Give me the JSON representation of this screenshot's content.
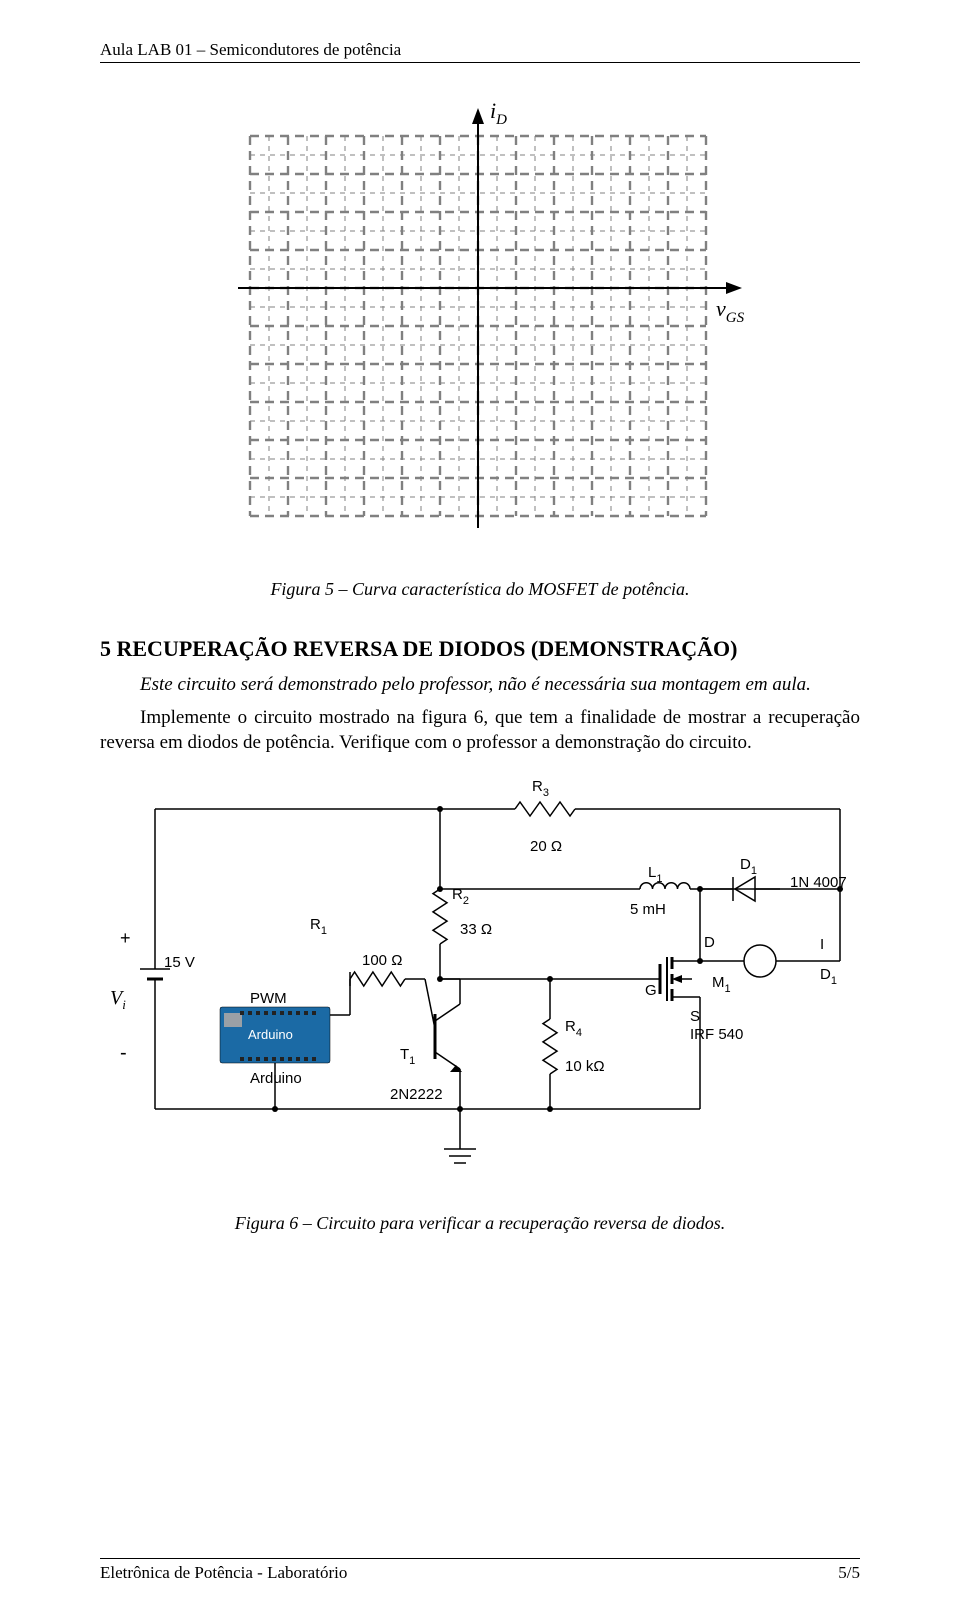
{
  "header": "Aula LAB 01 – Semicondutores de potência",
  "axes": {
    "y_label": "iD",
    "x_label": "vGS",
    "grid": {
      "cols": 12,
      "rows": 10,
      "cell": 38,
      "major_stroke": "#808080",
      "major_width": 2.4,
      "major_dash": "9 6",
      "minor_stroke": "#808080",
      "minor_width": 1,
      "minor_dash": "5 5",
      "axis_stroke": "#000000",
      "axis_width": 2
    }
  },
  "fig5_caption": "Figura 5 – Curva característica do MOSFET de potência.",
  "section5_title": "5   RECUPERAÇÃO REVERSA DE DIODOS (DEMONSTRAÇÃO)",
  "para1_a": "Este circuito será demonstrado pelo professor, não é necessária sua montagem em aula.",
  "para1_b": "Implemente o circuito mostrado na figura 6, que tem a finalidade de mostrar a recuperação reversa em diodos de potência. Verifique com o professor a demonstração do circuito.",
  "circuit": {
    "Vi_plus": "+",
    "Vi_minus": "-",
    "Vi": "Vi",
    "Vsrc": "15 V",
    "ard_box": "Arduino",
    "ard_label": "Arduino",
    "pwm": "PWM",
    "R1": "R1",
    "R1_val": "100 Ω",
    "R2": "R2",
    "R2_val": "33 Ω",
    "R3": "R3",
    "R3_val": "20 Ω",
    "R4": "R4",
    "R4_val": "10 kΩ",
    "T1": "T1",
    "T1_val": "2N2222",
    "L1": "L1",
    "L1_val": "5 mH",
    "D1": "D1",
    "D1_val": "1N 4007",
    "M1": "M1",
    "M1_val": "IRF 540",
    "G": "G",
    "D": "D",
    "S": "S",
    "I": "I",
    "D1_right": "D1",
    "arduino_color": "#1b6aa5",
    "arduino_text_color": "#ffffff"
  },
  "fig6_caption": "Figura 6 – Circuito para verificar a recuperação reversa de diodos.",
  "footer_left": "Eletrônica de Potência - Laboratório",
  "footer_right": "5/5"
}
